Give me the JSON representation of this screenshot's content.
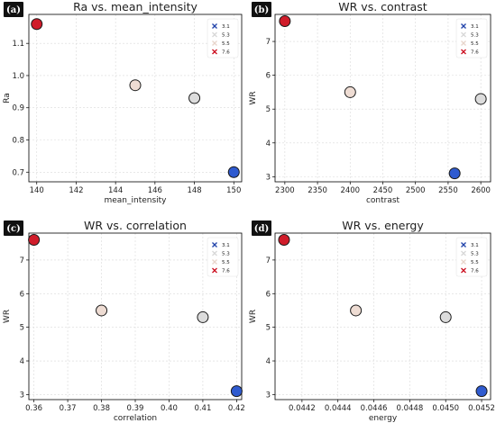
{
  "chart_data": [
    {
      "type": "scatter",
      "panel_label": "(a)",
      "title": "Ra vs. mean_intensity",
      "xlabel": "mean_intensity",
      "ylabel": "Ra",
      "xlim": [
        139.6,
        150.4
      ],
      "ylim": [
        0.67,
        1.19
      ],
      "xticks": [
        140,
        142,
        144,
        146,
        148,
        150
      ],
      "yticks": [
        0.7,
        0.8,
        0.9,
        1.0,
        1.1
      ],
      "xtick_labels": [
        "140",
        "142",
        "144",
        "146",
        "148",
        "150"
      ],
      "ytick_labels": [
        "0.7",
        "0.8",
        "0.9",
        "1.0",
        "1.1"
      ],
      "grid": true,
      "legend_position": "top-right",
      "legend": [
        {
          "label": "3.1",
          "color": "#2244aa"
        },
        {
          "label": "5.3",
          "color": "#d8d8d8"
        },
        {
          "label": "5.5",
          "color": "#e8d5cc"
        },
        {
          "label": "7.6",
          "color": "#cc1122"
        }
      ],
      "points": [
        {
          "x": 140,
          "y": 1.16,
          "color": "#d01c2a"
        },
        {
          "x": 145,
          "y": 0.97,
          "color": "#eedcd3"
        },
        {
          "x": 148,
          "y": 0.93,
          "color": "#dcdcdc"
        },
        {
          "x": 150,
          "y": 0.7,
          "color": "#2f5bd0"
        }
      ]
    },
    {
      "type": "scatter",
      "panel_label": "(b)",
      "title": "WR vs. contrast",
      "xlabel": "contrast",
      "ylabel": "WR",
      "xlim": [
        2285,
        2615
      ],
      "ylim": [
        2.85,
        7.8
      ],
      "xticks": [
        2300,
        2350,
        2400,
        2450,
        2500,
        2550,
        2600
      ],
      "yticks": [
        3,
        4,
        5,
        6,
        7
      ],
      "xtick_labels": [
        "2300",
        "2350",
        "2400",
        "2450",
        "2500",
        "2550",
        "2600"
      ],
      "ytick_labels": [
        "3",
        "4",
        "5",
        "6",
        "7"
      ],
      "grid": true,
      "legend_position": "top-right",
      "legend": [
        {
          "label": "3.1",
          "color": "#2244aa"
        },
        {
          "label": "5.3",
          "color": "#d8d8d8"
        },
        {
          "label": "5.5",
          "color": "#e8d5cc"
        },
        {
          "label": "7.6",
          "color": "#cc1122"
        }
      ],
      "points": [
        {
          "x": 2300,
          "y": 7.6,
          "color": "#d01c2a"
        },
        {
          "x": 2400,
          "y": 5.5,
          "color": "#eedcd3"
        },
        {
          "x": 2600,
          "y": 5.3,
          "color": "#dcdcdc"
        },
        {
          "x": 2560,
          "y": 3.1,
          "color": "#2f5bd0"
        }
      ]
    },
    {
      "type": "scatter",
      "panel_label": "(c)",
      "title": "WR vs. correlation",
      "xlabel": "correlation",
      "ylabel": "WR",
      "xlim": [
        0.3585,
        0.4215
      ],
      "ylim": [
        2.85,
        7.8
      ],
      "xticks": [
        0.36,
        0.37,
        0.38,
        0.39,
        0.4,
        0.41,
        0.42
      ],
      "yticks": [
        3,
        4,
        5,
        6,
        7
      ],
      "xtick_labels": [
        "0.36",
        "0.37",
        "0.38",
        "0.39",
        "0.40",
        "0.41",
        "0.42"
      ],
      "ytick_labels": [
        "3",
        "4",
        "5",
        "6",
        "7"
      ],
      "grid": true,
      "legend_position": "top-right",
      "legend": [
        {
          "label": "3.1",
          "color": "#2244aa"
        },
        {
          "label": "5.3",
          "color": "#d8d8d8"
        },
        {
          "label": "5.5",
          "color": "#e8d5cc"
        },
        {
          "label": "7.6",
          "color": "#cc1122"
        }
      ],
      "points": [
        {
          "x": 0.36,
          "y": 7.6,
          "color": "#d01c2a"
        },
        {
          "x": 0.38,
          "y": 5.5,
          "color": "#eedcd3"
        },
        {
          "x": 0.41,
          "y": 5.3,
          "color": "#dcdcdc"
        },
        {
          "x": 0.42,
          "y": 3.1,
          "color": "#2f5bd0"
        }
      ]
    },
    {
      "type": "scatter",
      "panel_label": "(d)",
      "title": "WR vs. energy",
      "xlabel": "energy",
      "ylabel": "WR",
      "xlim": [
        0.04405,
        0.04525
      ],
      "ylim": [
        2.85,
        7.8
      ],
      "xticks": [
        0.0442,
        0.0444,
        0.0446,
        0.0448,
        0.045,
        0.0452
      ],
      "yticks": [
        3,
        4,
        5,
        6,
        7
      ],
      "xtick_labels": [
        "0.0442",
        "0.0444",
        "0.0446",
        "0.0448",
        "0.0450",
        "0.0452"
      ],
      "ytick_labels": [
        "3",
        "4",
        "5",
        "6",
        "7"
      ],
      "grid": true,
      "legend_position": "top-right",
      "legend": [
        {
          "label": "3.1",
          "color": "#2244aa"
        },
        {
          "label": "5.3",
          "color": "#d8d8d8"
        },
        {
          "label": "5.5",
          "color": "#e8d5cc"
        },
        {
          "label": "7.6",
          "color": "#cc1122"
        }
      ],
      "points": [
        {
          "x": 0.0441,
          "y": 7.6,
          "color": "#d01c2a"
        },
        {
          "x": 0.0445,
          "y": 5.5,
          "color": "#eedcd3"
        },
        {
          "x": 0.045,
          "y": 5.3,
          "color": "#dcdcdc"
        },
        {
          "x": 0.0452,
          "y": 3.1,
          "color": "#2f5bd0"
        }
      ]
    }
  ]
}
